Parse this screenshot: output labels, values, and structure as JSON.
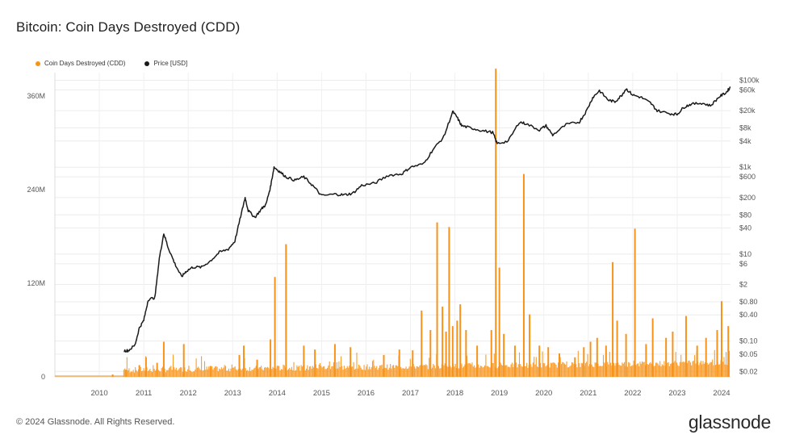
{
  "title": "Bitcoin: Coin Days Destroyed (CDD)",
  "footer": "© 2024 Glassnode. All Rights Reserved.",
  "brand": "glassnode",
  "legend": [
    {
      "label": "Coin Days Destroyed (CDD)",
      "color": "#f7931a"
    },
    {
      "label": "Price [USD]",
      "color": "#1a1a1a"
    }
  ],
  "chart_data": {
    "type": "line",
    "grid": true,
    "legend_position": "top-left",
    "x_ticks": [
      "2010",
      "2011",
      "2012",
      "2013",
      "2014",
      "2015",
      "2016",
      "2017",
      "2018",
      "2019",
      "2020",
      "2021",
      "2022",
      "2023",
      "2024"
    ],
    "x_range": [
      2009.0,
      2024.2
    ],
    "left_axis": {
      "ticks": [
        0,
        120000000,
        240000000,
        360000000
      ],
      "tick_labels": [
        "0",
        "120M",
        "240M",
        "360M"
      ],
      "range": [
        0,
        390000000
      ]
    },
    "right_axis": {
      "scale": "log",
      "ticks": [
        0.02,
        0.05,
        0.1,
        0.4,
        0.8,
        2,
        6,
        10,
        40,
        80,
        200,
        600,
        1000,
        4000,
        8000,
        20000,
        60000,
        100000
      ],
      "tick_labels": [
        "$0.02",
        "$0.05",
        "$0.10",
        "$0.40",
        "$0.80",
        "$2",
        "$6",
        "$10",
        "$40",
        "$80",
        "$200",
        "$600",
        "$1k",
        "$4k",
        "$8k",
        "$20k",
        "$60k",
        "$100k"
      ],
      "range": [
        0.015,
        150000
      ]
    },
    "series": [
      {
        "name": "Coin Days Destroyed (CDD)",
        "axis": "left",
        "style": "spikes",
        "color": "#f7931a",
        "baseline": 5000000,
        "spikes": [
          [
            2010.3,
            3000000
          ],
          [
            2010.6,
            9000000
          ],
          [
            2010.9,
            15000000
          ],
          [
            2011.05,
            25000000
          ],
          [
            2011.3,
            18000000
          ],
          [
            2011.45,
            45000000
          ],
          [
            2011.9,
            42000000
          ],
          [
            2012.5,
            14000000
          ],
          [
            2013.15,
            28000000
          ],
          [
            2013.25,
            40000000
          ],
          [
            2013.55,
            22000000
          ],
          [
            2013.85,
            48000000
          ],
          [
            2013.95,
            128000000
          ],
          [
            2014.2,
            170000000
          ],
          [
            2014.6,
            40000000
          ],
          [
            2014.85,
            35000000
          ],
          [
            2015.3,
            42000000
          ],
          [
            2015.65,
            38000000
          ],
          [
            2016.4,
            28000000
          ],
          [
            2016.75,
            35000000
          ],
          [
            2017.05,
            34000000
          ],
          [
            2017.25,
            85000000
          ],
          [
            2017.45,
            60000000
          ],
          [
            2017.6,
            198000000
          ],
          [
            2017.72,
            90000000
          ],
          [
            2017.8,
            58000000
          ],
          [
            2017.87,
            192000000
          ],
          [
            2017.95,
            65000000
          ],
          [
            2018.05,
            72000000
          ],
          [
            2018.12,
            93000000
          ],
          [
            2018.25,
            60000000
          ],
          [
            2018.5,
            40000000
          ],
          [
            2018.82,
            60000000
          ],
          [
            2018.92,
            395000000
          ],
          [
            2019.0,
            140000000
          ],
          [
            2019.1,
            55000000
          ],
          [
            2019.35,
            40000000
          ],
          [
            2019.55,
            260000000
          ],
          [
            2019.68,
            80000000
          ],
          [
            2019.9,
            40000000
          ],
          [
            2020.1,
            38000000
          ],
          [
            2020.35,
            30000000
          ],
          [
            2020.7,
            25000000
          ],
          [
            2020.9,
            38000000
          ],
          [
            2021.05,
            45000000
          ],
          [
            2021.2,
            50000000
          ],
          [
            2021.4,
            40000000
          ],
          [
            2021.55,
            147000000
          ],
          [
            2021.65,
            72000000
          ],
          [
            2021.85,
            55000000
          ],
          [
            2022.05,
            190000000
          ],
          [
            2022.3,
            42000000
          ],
          [
            2022.45,
            75000000
          ],
          [
            2022.75,
            50000000
          ],
          [
            2022.9,
            58000000
          ],
          [
            2023.2,
            78000000
          ],
          [
            2023.45,
            40000000
          ],
          [
            2023.65,
            50000000
          ],
          [
            2023.9,
            60000000
          ],
          [
            2024.0,
            97000000
          ],
          [
            2024.15,
            65000000
          ]
        ]
      },
      {
        "name": "Price [USD]",
        "axis": "right",
        "style": "line",
        "color": "#1a1a1a",
        "points": [
          [
            2010.55,
            0.06
          ],
          [
            2010.65,
            0.06
          ],
          [
            2010.8,
            0.08
          ],
          [
            2010.9,
            0.2
          ],
          [
            2011.0,
            0.3
          ],
          [
            2011.1,
            0.9
          ],
          [
            2011.25,
            1.0
          ],
          [
            2011.35,
            8
          ],
          [
            2011.45,
            30
          ],
          [
            2011.55,
            14
          ],
          [
            2011.7,
            6
          ],
          [
            2011.85,
            3
          ],
          [
            2011.95,
            4
          ],
          [
            2012.1,
            5
          ],
          [
            2012.3,
            5
          ],
          [
            2012.5,
            7
          ],
          [
            2012.7,
            11
          ],
          [
            2012.9,
            13
          ],
          [
            2013.05,
            20
          ],
          [
            2013.2,
            90
          ],
          [
            2013.28,
            200
          ],
          [
            2013.35,
            100
          ],
          [
            2013.5,
            70
          ],
          [
            2013.65,
            110
          ],
          [
            2013.75,
            140
          ],
          [
            2013.85,
            350
          ],
          [
            2013.93,
            1000
          ],
          [
            2014.05,
            800
          ],
          [
            2014.2,
            600
          ],
          [
            2014.4,
            500
          ],
          [
            2014.6,
            600
          ],
          [
            2014.8,
            380
          ],
          [
            2015.0,
            220
          ],
          [
            2015.3,
            240
          ],
          [
            2015.5,
            230
          ],
          [
            2015.7,
            250
          ],
          [
            2015.9,
            380
          ],
          [
            2016.2,
            430
          ],
          [
            2016.5,
            650
          ],
          [
            2016.8,
            700
          ],
          [
            2017.0,
            1000
          ],
          [
            2017.3,
            1200
          ],
          [
            2017.5,
            2500
          ],
          [
            2017.75,
            5000
          ],
          [
            2017.95,
            19000
          ],
          [
            2018.05,
            14000
          ],
          [
            2018.15,
            9000
          ],
          [
            2018.35,
            8000
          ],
          [
            2018.6,
            7000
          ],
          [
            2018.85,
            6300
          ],
          [
            2018.95,
            3500
          ],
          [
            2019.2,
            4000
          ],
          [
            2019.45,
            11000
          ],
          [
            2019.6,
            10000
          ],
          [
            2019.9,
            7200
          ],
          [
            2020.05,
            9000
          ],
          [
            2020.2,
            5500
          ],
          [
            2020.5,
            9500
          ],
          [
            2020.8,
            11000
          ],
          [
            2020.95,
            19000
          ],
          [
            2021.1,
            40000
          ],
          [
            2021.25,
            58000
          ],
          [
            2021.45,
            35000
          ],
          [
            2021.6,
            32000
          ],
          [
            2021.75,
            45000
          ],
          [
            2021.85,
            64000
          ],
          [
            2022.0,
            46000
          ],
          [
            2022.2,
            40000
          ],
          [
            2022.4,
            30000
          ],
          [
            2022.55,
            20000
          ],
          [
            2022.85,
            17000
          ],
          [
            2023.0,
            16500
          ],
          [
            2023.15,
            24000
          ],
          [
            2023.3,
            28000
          ],
          [
            2023.55,
            30000
          ],
          [
            2023.75,
            26000
          ],
          [
            2023.95,
            42000
          ],
          [
            2024.1,
            52000
          ],
          [
            2024.2,
            70000
          ]
        ]
      }
    ]
  }
}
